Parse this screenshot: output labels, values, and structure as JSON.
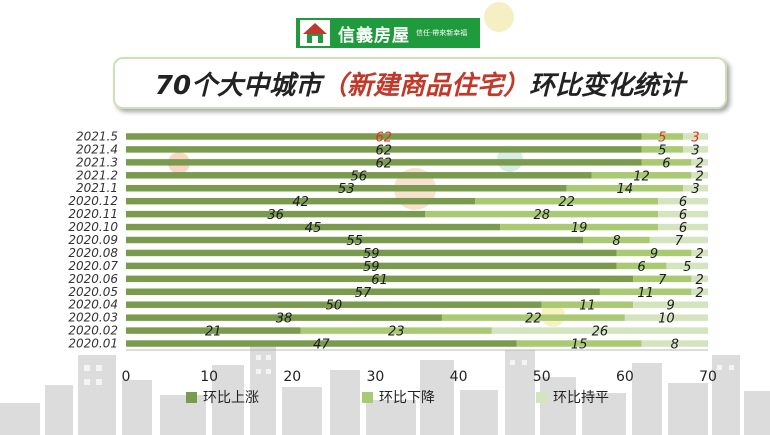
{
  "logo": {
    "name": "信義房屋",
    "slogan": "信任·帶來新幸福"
  },
  "title": {
    "prefix": "70个大中城市",
    "highlight": "（新建商品住宅）",
    "suffix": "环比变化统计"
  },
  "colors": {
    "up": "#7a9a4e",
    "down": "#a9c973",
    "flat": "#d3e4bf",
    "label": "#1a1a1a",
    "label_highlight": "#e0301e"
  },
  "chart_data": {
    "type": "bar",
    "orientation": "horizontal",
    "stacked": true,
    "categories": [
      "2021.5",
      "2021.4",
      "2021.3",
      "2021.2",
      "2021.1",
      "2020.12",
      "2020.11",
      "2020.10",
      "2020.09",
      "2020.08",
      "2020.07",
      "2020.06",
      "2020.05",
      "2020.04",
      "2020.03",
      "2020.02",
      "2020.01"
    ],
    "series": [
      {
        "name": "环比上涨",
        "values": [
          62,
          62,
          62,
          56,
          53,
          42,
          36,
          45,
          55,
          59,
          59,
          61,
          57,
          50,
          38,
          21,
          47
        ]
      },
      {
        "name": "环比下降",
        "values": [
          5,
          5,
          6,
          12,
          14,
          22,
          28,
          19,
          8,
          9,
          6,
          7,
          11,
          11,
          22,
          23,
          15
        ]
      },
      {
        "name": "环比持平",
        "values": [
          3,
          3,
          2,
          2,
          3,
          6,
          6,
          6,
          7,
          2,
          5,
          2,
          2,
          9,
          10,
          26,
          8
        ]
      }
    ],
    "highlighted_category": "2021.5",
    "xlim": [
      0,
      70
    ],
    "xticks": [
      0,
      10,
      20,
      30,
      40,
      50,
      60,
      70
    ],
    "legend_position": "bottom-left",
    "grid": false
  }
}
